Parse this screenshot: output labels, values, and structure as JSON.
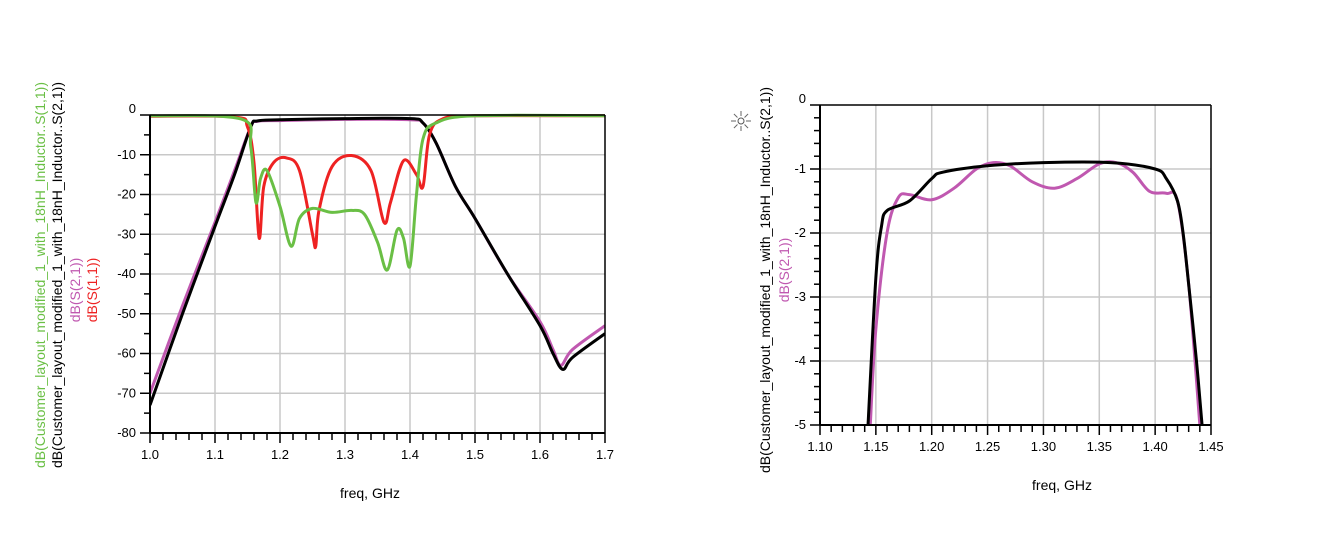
{
  "chart_data": [
    {
      "type": "line",
      "xlabel": "freq, GHz",
      "xlim": [
        1.0,
        1.7
      ],
      "ylim": [
        -80,
        0
      ],
      "xticks": [
        "1.0",
        "1.1",
        "1.2",
        "1.3",
        "1.4",
        "1.5",
        "1.6",
        "1.7"
      ],
      "yticks": [
        "0",
        "-10",
        "-20",
        "-30",
        "-40",
        "-50",
        "-60",
        "-70",
        "-80"
      ],
      "grid": true,
      "ylabels": [
        {
          "text": "dB(Customer_layout_modified_1_with_18nH_Inductor..S(1,1))",
          "color": "#6abf45"
        },
        {
          "text": "dB(Customer_layout_modified_1_with_18nH_Inductor..S(2,1))",
          "color": "#000000"
        },
        {
          "text": "dB(S(2,1))",
          "color": "#c058b0"
        },
        {
          "text": "dB(S(1,1))",
          "color": "#ee2222"
        }
      ],
      "series": [
        {
          "color": "#c058b0",
          "x": [
            1.0,
            1.05,
            1.1,
            1.13,
            1.155,
            1.165,
            1.2,
            1.3,
            1.4,
            1.42,
            1.44,
            1.47,
            1.5,
            1.55,
            1.6,
            1.62,
            1.632,
            1.65,
            1.7
          ],
          "y": [
            -70,
            -48,
            -27,
            -14,
            -3,
            -1.6,
            -1.4,
            -1.1,
            -1.2,
            -2,
            -7,
            -18,
            -26,
            -40,
            -52,
            -59,
            -63,
            -59,
            -53
          ]
        },
        {
          "color": "#000000",
          "x": [
            1.0,
            1.05,
            1.1,
            1.13,
            1.155,
            1.165,
            1.2,
            1.3,
            1.4,
            1.42,
            1.44,
            1.47,
            1.5,
            1.55,
            1.6,
            1.62,
            1.635,
            1.65,
            1.7
          ],
          "y": [
            -73,
            -50,
            -28,
            -15,
            -3,
            -1.5,
            -1.2,
            -0.9,
            -0.9,
            -2,
            -7,
            -18,
            -26,
            -40,
            -53,
            -60,
            -64,
            -61,
            -55
          ]
        },
        {
          "color": "#ee2222",
          "x": [
            1.0,
            1.13,
            1.15,
            1.16,
            1.168,
            1.175,
            1.19,
            1.21,
            1.23,
            1.25,
            1.255,
            1.26,
            1.28,
            1.31,
            1.34,
            1.36,
            1.37,
            1.39,
            1.41,
            1.42,
            1.43,
            1.45,
            1.5,
            1.7
          ],
          "y": [
            -0.3,
            -0.5,
            -3,
            -12,
            -31,
            -18,
            -12,
            -10.8,
            -14,
            -30,
            -33,
            -24,
            -13,
            -10.2,
            -14,
            -27,
            -22,
            -11.5,
            -15,
            -18,
            -5,
            -1,
            -0.2,
            -0.2
          ]
        },
        {
          "color": "#6abf45",
          "x": [
            1.0,
            1.14,
            1.155,
            1.163,
            1.17,
            1.18,
            1.2,
            1.217,
            1.23,
            1.25,
            1.28,
            1.31,
            1.33,
            1.35,
            1.365,
            1.38,
            1.39,
            1.4,
            1.41,
            1.42,
            1.44,
            1.5,
            1.7
          ],
          "y": [
            -0.2,
            -1,
            -8,
            -22,
            -16,
            -14,
            -23,
            -33,
            -26,
            -23.5,
            -24.5,
            -24,
            -25,
            -32,
            -39,
            -29,
            -31,
            -38,
            -20,
            -6,
            -2,
            -0.2,
            -0.2
          ]
        }
      ]
    },
    {
      "type": "line",
      "xlabel": "freq, GHz",
      "xlim": [
        1.1,
        1.45
      ],
      "ylim": [
        -5,
        0
      ],
      "xticks": [
        "1.10",
        "1.15",
        "1.20",
        "1.25",
        "1.30",
        "1.35",
        "1.40",
        "1.45"
      ],
      "yticks": [
        "0",
        "-1",
        "-2",
        "-3",
        "-4",
        "-5"
      ],
      "grid": true,
      "marker_icon": "sun-icon",
      "ylabels": [
        {
          "text": "dB(Customer_layout_modified_1_with_18nH_Inductor..S(2,1))",
          "color": "#000000"
        },
        {
          "text": "dB(S(2,1))",
          "color": "#c058b0"
        }
      ],
      "series": [
        {
          "color": "#c058b0",
          "x": [
            1.145,
            1.15,
            1.16,
            1.17,
            1.18,
            1.2,
            1.22,
            1.24,
            1.255,
            1.27,
            1.29,
            1.31,
            1.33,
            1.35,
            1.365,
            1.38,
            1.395,
            1.41,
            1.42,
            1.43,
            1.44
          ],
          "y": [
            -5,
            -3.5,
            -2,
            -1.45,
            -1.4,
            -1.48,
            -1.3,
            -1.0,
            -0.9,
            -0.95,
            -1.2,
            -1.3,
            -1.15,
            -0.92,
            -0.9,
            -1.05,
            -1.35,
            -1.38,
            -1.5,
            -2.8,
            -5
          ]
        },
        {
          "color": "#000000",
          "x": [
            1.143,
            1.15,
            1.155,
            1.16,
            1.18,
            1.2,
            1.21,
            1.25,
            1.3,
            1.36,
            1.4,
            1.41,
            1.42,
            1.425,
            1.43,
            1.437,
            1.442
          ],
          "y": [
            -5,
            -2.7,
            -1.9,
            -1.65,
            -1.5,
            -1.15,
            -1.05,
            -0.95,
            -0.9,
            -0.9,
            -1.0,
            -1.15,
            -1.5,
            -2,
            -2.8,
            -4,
            -5
          ]
        }
      ]
    }
  ]
}
